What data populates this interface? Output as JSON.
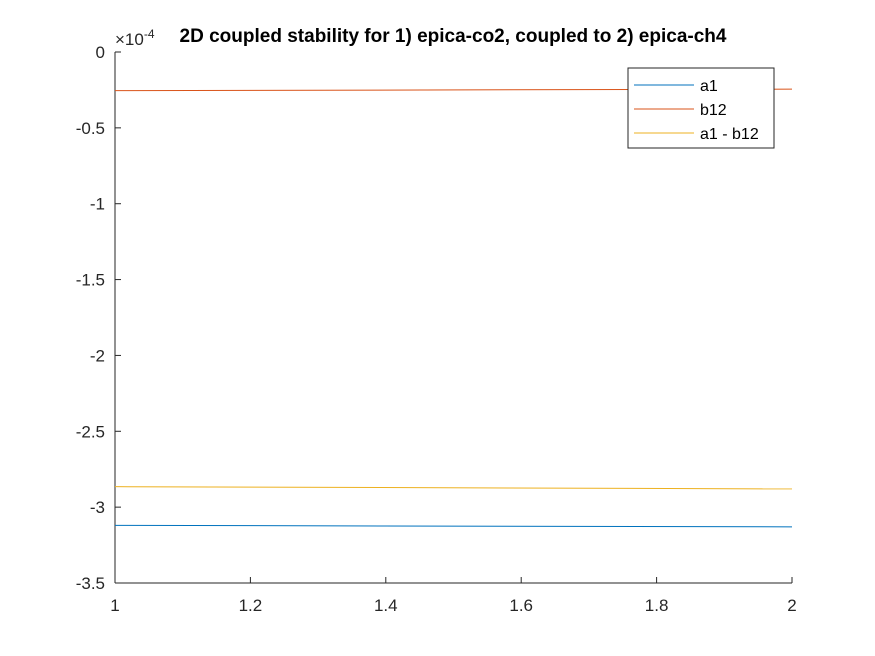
{
  "chart_data": {
    "type": "line",
    "title": "2D coupled stability for 1) epica-co2, coupled to 2) epica-ch4",
    "xlabel": "",
    "ylabel": "",
    "y_exponent_label": "×10",
    "y_exponent_value": "-4",
    "xlim": [
      1,
      2
    ],
    "ylim": [
      -3.5,
      0
    ],
    "xticks": [
      "1",
      "1.2",
      "1.4",
      "1.6",
      "1.8",
      "2"
    ],
    "yticks": [
      "0",
      "-0.5",
      "-1",
      "-1.5",
      "-2",
      "-2.5",
      "-3",
      "-3.5"
    ],
    "x": [
      1,
      2
    ],
    "series": [
      {
        "name": "a1",
        "color": "#0072BD",
        "values": [
          -3.12,
          -3.13
        ]
      },
      {
        "name": "b12",
        "color": "#D95319",
        "values": [
          -0.255,
          -0.245
        ]
      },
      {
        "name": "a1 - b12",
        "color": "#EDB120",
        "values": [
          -2.865,
          -2.88
        ]
      }
    ],
    "grid": false,
    "legend_position": "top-right"
  }
}
